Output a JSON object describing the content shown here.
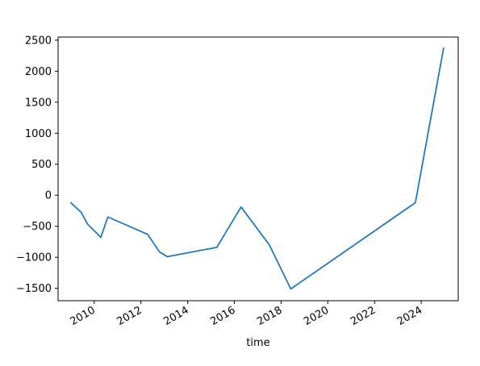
{
  "chart_data": {
    "type": "line",
    "title": "",
    "xlabel": "time",
    "ylabel": "",
    "grid": false,
    "legend": "none",
    "x_type": "date",
    "xlim": [
      "2008-06-15",
      "2025-08-01"
    ],
    "ylim": [
      -1700,
      2550
    ],
    "x_ticks": [
      "2010-01-01",
      "2012-01-01",
      "2014-01-01",
      "2016-01-01",
      "2018-01-01",
      "2020-01-01",
      "2022-01-01",
      "2024-01-01"
    ],
    "x_tick_labels": [
      "2010",
      "2012",
      "2014",
      "2016",
      "2018",
      "2020",
      "2022",
      "2024"
    ],
    "y_ticks": [
      -1500,
      -1000,
      -500,
      0,
      500,
      1000,
      1500,
      2000,
      2500
    ],
    "y_tick_labels": [
      "−1500",
      "−1000",
      "−500",
      "0",
      "500",
      "1000",
      "1500",
      "2000",
      "2500"
    ],
    "series": [
      {
        "color": "#1f77b4",
        "x": [
          "2009-01-01",
          "2009-06-15",
          "2009-09-15",
          "2010-04-15",
          "2010-08-01",
          "2012-04-15",
          "2012-10-15",
          "2013-02-15",
          "2015-04-01",
          "2016-04-15",
          "2017-07-01",
          "2018-06-01",
          "2023-10-01",
          "2024-12-15"
        ],
        "y": [
          -120,
          -280,
          -460,
          -680,
          -350,
          -630,
          -910,
          -990,
          -840,
          -190,
          -800,
          -1510,
          -120,
          2370
        ]
      }
    ]
  }
}
